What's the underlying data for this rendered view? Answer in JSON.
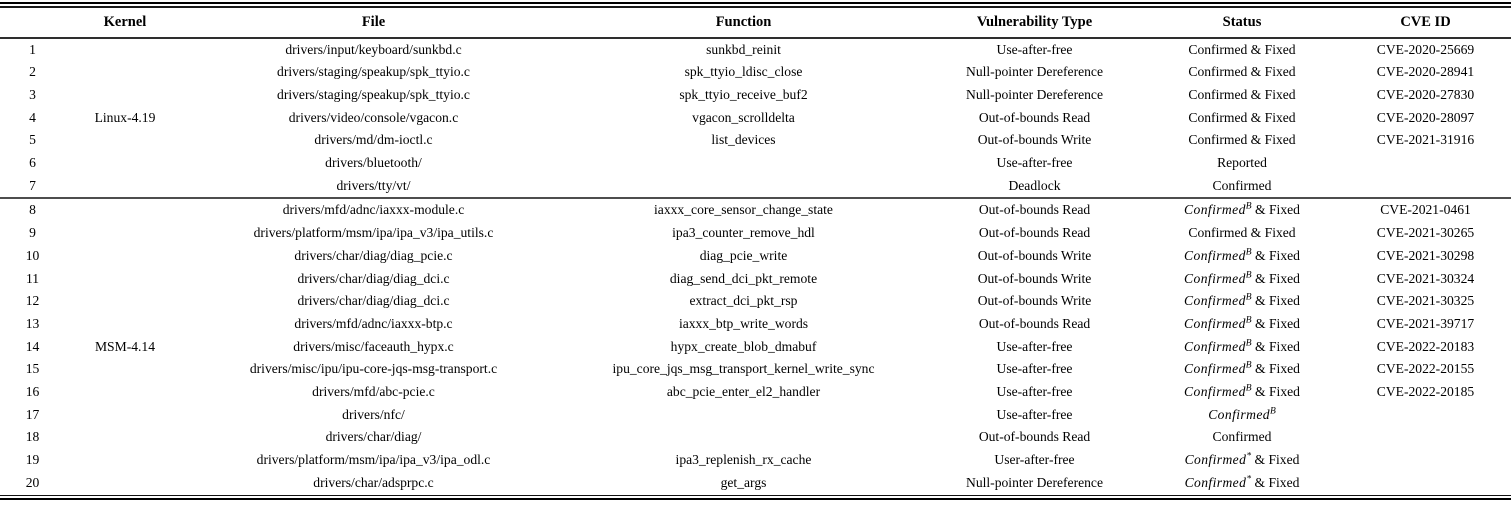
{
  "table": {
    "headers": {
      "num": "",
      "kernel": "Kernel",
      "file": "File",
      "function": "Function",
      "vuln_type": "Vulnerability Type",
      "status": "Status",
      "cve": "CVE ID"
    },
    "kernel_groups": [
      {
        "label": "Linux-4.19",
        "row_span": 7
      },
      {
        "label": "MSM-4.14",
        "row_span": 13
      }
    ],
    "rows": [
      {
        "num": "1",
        "group": 0,
        "file": "drivers/input/keyboard/sunkbd.c",
        "function": "sunkbd_reinit",
        "vuln_type": "Use-after-free",
        "status": {
          "word": "Confirmed",
          "sup": "",
          "rest": " & Fixed",
          "italic": false
        },
        "cve": "CVE-2020-25669"
      },
      {
        "num": "2",
        "file": "drivers/staging/speakup/spk_ttyio.c",
        "function": "spk_ttyio_ldisc_close",
        "vuln_type": "Null-pointer Dereference",
        "status": {
          "word": "Confirmed",
          "sup": "",
          "rest": " & Fixed",
          "italic": false
        },
        "cve": "CVE-2020-28941"
      },
      {
        "num": "3",
        "file": "drivers/staging/speakup/spk_ttyio.c",
        "function": "spk_ttyio_receive_buf2",
        "vuln_type": "Null-pointer Dereference",
        "status": {
          "word": "Confirmed",
          "sup": "",
          "rest": " & Fixed",
          "italic": false
        },
        "cve": "CVE-2020-27830"
      },
      {
        "num": "4",
        "file": "drivers/video/console/vgacon.c",
        "function": "vgacon_scrolldelta",
        "vuln_type": "Out-of-bounds Read",
        "status": {
          "word": "Confirmed",
          "sup": "",
          "rest": " & Fixed",
          "italic": false
        },
        "cve": "CVE-2020-28097"
      },
      {
        "num": "5",
        "file": "drivers/md/dm-ioctl.c",
        "function": "list_devices",
        "vuln_type": "Out-of-bounds Write",
        "status": {
          "word": "Confirmed",
          "sup": "",
          "rest": " & Fixed",
          "italic": false
        },
        "cve": "CVE-2021-31916"
      },
      {
        "num": "6",
        "file": "drivers/bluetooth/",
        "function": "",
        "vuln_type": "Use-after-free",
        "status": {
          "word": "Reported",
          "sup": "",
          "rest": "",
          "italic": false
        },
        "cve": ""
      },
      {
        "num": "7",
        "file": "drivers/tty/vt/",
        "function": "",
        "vuln_type": "Deadlock",
        "status": {
          "word": "Confirmed",
          "sup": "",
          "rest": "",
          "italic": false
        },
        "cve": ""
      },
      {
        "num": "8",
        "group": 1,
        "file": "drivers/mfd/adnc/iaxxx-module.c",
        "function": "iaxxx_core_sensor_change_state",
        "vuln_type": "Out-of-bounds Read",
        "status": {
          "word": "Confirmed",
          "sup": "B",
          "rest": " & Fixed",
          "italic": true
        },
        "cve": "CVE-2021-0461"
      },
      {
        "num": "9",
        "file": "drivers/platform/msm/ipa/ipa_v3/ipa_utils.c",
        "function": "ipa3_counter_remove_hdl",
        "vuln_type": "Out-of-bounds Read",
        "status": {
          "word": "Confirmed",
          "sup": "",
          "rest": " & Fixed",
          "italic": false
        },
        "cve": "CVE-2021-30265"
      },
      {
        "num": "10",
        "file": "drivers/char/diag/diag_pcie.c",
        "function": "diag_pcie_write",
        "vuln_type": "Out-of-bounds Write",
        "status": {
          "word": "Confirmed",
          "sup": "B",
          "rest": " & Fixed",
          "italic": true
        },
        "cve": "CVE-2021-30298"
      },
      {
        "num": "11",
        "file": "drivers/char/diag/diag_dci.c",
        "function": "diag_send_dci_pkt_remote",
        "vuln_type": "Out-of-bounds Write",
        "status": {
          "word": "Confirmed",
          "sup": "B",
          "rest": " & Fixed",
          "italic": true
        },
        "cve": "CVE-2021-30324"
      },
      {
        "num": "12",
        "file": "drivers/char/diag/diag_dci.c",
        "function": "extract_dci_pkt_rsp",
        "vuln_type": "Out-of-bounds Write",
        "status": {
          "word": "Confirmed",
          "sup": "B",
          "rest": " & Fixed",
          "italic": true
        },
        "cve": "CVE-2021-30325"
      },
      {
        "num": "13",
        "file": "drivers/mfd/adnc/iaxxx-btp.c",
        "function": "iaxxx_btp_write_words",
        "vuln_type": "Out-of-bounds Read",
        "status": {
          "word": "Confirmed",
          "sup": "B",
          "rest": " & Fixed",
          "italic": true
        },
        "cve": "CVE-2021-39717"
      },
      {
        "num": "14",
        "file": "drivers/misc/faceauth_hypx.c",
        "function": "hypx_create_blob_dmabuf",
        "vuln_type": "Use-after-free",
        "status": {
          "word": "Confirmed",
          "sup": "B",
          "rest": " & Fixed",
          "italic": true
        },
        "cve": "CVE-2022-20183"
      },
      {
        "num": "15",
        "file": "drivers/misc/ipu/ipu-core-jqs-msg-transport.c",
        "function": "ipu_core_jqs_msg_transport_kernel_write_sync",
        "vuln_type": "Use-after-free",
        "status": {
          "word": "Confirmed",
          "sup": "B",
          "rest": " & Fixed",
          "italic": true
        },
        "cve": "CVE-2022-20155"
      },
      {
        "num": "16",
        "file": "drivers/mfd/abc-pcie.c",
        "function": "abc_pcie_enter_el2_handler",
        "vuln_type": "Use-after-free",
        "status": {
          "word": "Confirmed",
          "sup": "B",
          "rest": " & Fixed",
          "italic": true
        },
        "cve": "CVE-2022-20185"
      },
      {
        "num": "17",
        "file": "drivers/nfc/",
        "function": "",
        "vuln_type": "Use-after-free",
        "status": {
          "word": "Confirmed",
          "sup": "B",
          "rest": "",
          "italic": true
        },
        "cve": ""
      },
      {
        "num": "18",
        "file": "drivers/char/diag/",
        "function": "",
        "vuln_type": "Out-of-bounds Read",
        "status": {
          "word": "Confirmed",
          "sup": "",
          "rest": "",
          "italic": false
        },
        "cve": ""
      },
      {
        "num": "19",
        "file": "drivers/platform/msm/ipa/ipa_v3/ipa_odl.c",
        "function": "ipa3_replenish_rx_cache",
        "vuln_type": "User-after-free",
        "status": {
          "word": "Confirmed",
          "sup": "*",
          "rest": " & Fixed",
          "italic": true
        },
        "cve": ""
      },
      {
        "num": "20",
        "file": "drivers/char/adsprpc.c",
        "function": "get_args",
        "vuln_type": "Null-pointer Dereference",
        "status": {
          "word": "Confirmed",
          "sup": "*",
          "rest": " & Fixed",
          "italic": true
        },
        "cve": ""
      }
    ]
  }
}
